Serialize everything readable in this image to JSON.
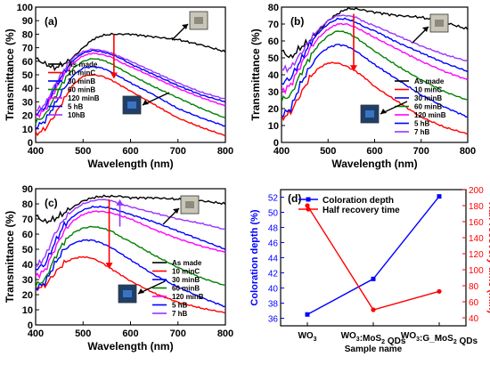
{
  "colors": {
    "black": "#000000",
    "red": "#ff0000",
    "blue": "#0000ff",
    "green": "#008000",
    "magenta": "#ff00ff",
    "purple": "#9933ff",
    "darkred": "#cc0000"
  },
  "chart_data": [
    {
      "id": "a",
      "type": "line",
      "panel_label": "(a)",
      "xlabel": "Wavelength (nm)",
      "ylabel": "Transmittance (%)",
      "xlim": [
        400,
        800
      ],
      "ylim": [
        0,
        100
      ],
      "xticks": [
        400,
        500,
        600,
        700,
        800
      ],
      "yticks": [
        0,
        10,
        20,
        30,
        40,
        50,
        60,
        70,
        80,
        90,
        100
      ],
      "legend": "bottom-left",
      "series": [
        {
          "name": "As made",
          "color": "#000000",
          "x": [
            400,
            420,
            440,
            470,
            500,
            520,
            540,
            560,
            580,
            600,
            650,
            700,
            750,
            800
          ],
          "y": [
            62,
            58,
            55,
            60,
            70,
            76,
            79,
            80,
            80,
            80,
            78,
            76,
            72,
            67
          ]
        },
        {
          "name": "10 minC",
          "color": "#ff0000",
          "x": [
            400,
            420,
            440,
            460,
            480,
            500,
            520,
            540,
            560,
            580,
            600,
            650,
            700,
            750,
            800
          ],
          "y": [
            6,
            10,
            20,
            32,
            43,
            49,
            50,
            49,
            46,
            42,
            38,
            28,
            18,
            11,
            5
          ]
        },
        {
          "name": "30 minB",
          "color": "#0000ff",
          "x": [
            400,
            420,
            440,
            460,
            480,
            500,
            520,
            540,
            560,
            580,
            600,
            650,
            700,
            750,
            800
          ],
          "y": [
            11,
            16,
            28,
            40,
            50,
            55,
            56,
            55,
            52,
            48,
            44,
            35,
            25,
            18,
            12
          ]
        },
        {
          "name": "60 minB",
          "color": "#008000",
          "x": [
            400,
            420,
            440,
            460,
            480,
            500,
            520,
            540,
            560,
            580,
            600,
            650,
            700,
            750,
            800
          ],
          "y": [
            15,
            20,
            33,
            46,
            55,
            60,
            62,
            61,
            58,
            54,
            50,
            41,
            33,
            25,
            18
          ]
        },
        {
          "name": "120 minB",
          "color": "#ff00ff",
          "x": [
            400,
            420,
            440,
            460,
            480,
            500,
            520,
            540,
            560,
            580,
            600,
            650,
            700,
            750,
            800
          ],
          "y": [
            19,
            24,
            38,
            50,
            59,
            64,
            66,
            65,
            63,
            59,
            56,
            48,
            40,
            33,
            27
          ]
        },
        {
          "name": "5 hB",
          "color": "#0000ff",
          "x": [
            400,
            420,
            440,
            460,
            480,
            500,
            520,
            540,
            560,
            580,
            600,
            650,
            700,
            750,
            800
          ],
          "y": [
            21,
            26,
            40,
            52,
            61,
            66,
            68,
            67,
            65,
            62,
            58,
            50,
            42,
            35,
            30
          ]
        },
        {
          "name": "10hB",
          "color": "#9933ff",
          "x": [
            400,
            420,
            440,
            460,
            480,
            500,
            520,
            540,
            560,
            580,
            600,
            650,
            700,
            750,
            800
          ],
          "y": [
            23,
            28,
            42,
            54,
            63,
            67,
            69,
            68,
            66,
            63,
            60,
            52,
            44,
            37,
            32
          ]
        }
      ]
    },
    {
      "id": "b",
      "type": "line",
      "panel_label": "(b)",
      "xlabel": "Wavelength (nm)",
      "ylabel": "Transmittance (%)",
      "xlim": [
        400,
        800
      ],
      "ylim": [
        0,
        80
      ],
      "xticks": [
        400,
        500,
        600,
        700,
        800
      ],
      "yticks": [
        0,
        10,
        20,
        30,
        40,
        50,
        60,
        70,
        80
      ],
      "legend": "bottom-right",
      "series": [
        {
          "name": "As made",
          "color": "#000000",
          "x": [
            400,
            420,
            440,
            460,
            480,
            500,
            520,
            540,
            560,
            580,
            600,
            650,
            700,
            750,
            800
          ],
          "y": [
            54,
            50,
            56,
            60,
            66,
            72,
            76,
            79,
            79,
            78,
            77,
            75,
            74,
            71,
            67
          ]
        },
        {
          "name": "10 minC",
          "color": "#ff0000",
          "x": [
            400,
            420,
            440,
            460,
            480,
            500,
            520,
            540,
            560,
            580,
            600,
            650,
            700,
            750,
            800
          ],
          "y": [
            14,
            18,
            28,
            38,
            44,
            47,
            47,
            45,
            42,
            38,
            33,
            24,
            15,
            9,
            5
          ]
        },
        {
          "name": "30 minB",
          "color": "#0000ff",
          "x": [
            400,
            420,
            440,
            460,
            480,
            500,
            520,
            540,
            560,
            580,
            600,
            650,
            700,
            750,
            800
          ],
          "y": [
            16,
            20,
            34,
            44,
            52,
            56,
            58,
            57,
            54,
            50,
            46,
            37,
            28,
            21,
            15
          ]
        },
        {
          "name": "60 minB",
          "color": "#008000",
          "x": [
            400,
            420,
            440,
            460,
            480,
            500,
            520,
            540,
            560,
            580,
            600,
            650,
            700,
            750,
            800
          ],
          "y": [
            25,
            28,
            40,
            50,
            58,
            63,
            66,
            65,
            62,
            58,
            54,
            45,
            37,
            30,
            25
          ]
        },
        {
          "name": "120 minB",
          "color": "#ff00ff",
          "x": [
            400,
            420,
            440,
            460,
            480,
            500,
            520,
            540,
            560,
            580,
            600,
            650,
            700,
            750,
            800
          ],
          "y": [
            30,
            34,
            45,
            55,
            62,
            67,
            70,
            70,
            68,
            65,
            62,
            55,
            48,
            42,
            37
          ]
        },
        {
          "name": "5 hB",
          "color": "#0000ff",
          "x": [
            400,
            420,
            440,
            460,
            480,
            500,
            520,
            540,
            560,
            580,
            600,
            650,
            700,
            750,
            800
          ],
          "y": [
            35,
            38,
            48,
            58,
            65,
            70,
            73,
            73,
            71,
            68,
            66,
            59,
            53,
            47,
            42
          ]
        },
        {
          "name": "7 hB",
          "color": "#9933ff",
          "x": [
            400,
            420,
            440,
            460,
            480,
            500,
            520,
            540,
            560,
            580,
            600,
            650,
            700,
            750,
            800
          ],
          "y": [
            43,
            44,
            52,
            60,
            67,
            72,
            75,
            75,
            74,
            71,
            69,
            63,
            57,
            52,
            48
          ]
        }
      ]
    },
    {
      "id": "c",
      "type": "line",
      "panel_label": "(c)",
      "xlabel": "Wavelength (nm)",
      "ylabel": "Transmittance (%)",
      "xlim": [
        400,
        800
      ],
      "ylim": [
        0,
        90
      ],
      "xticks": [
        400,
        500,
        600,
        700,
        800
      ],
      "yticks": [
        0,
        10,
        20,
        30,
        40,
        50,
        60,
        70,
        80,
        90
      ],
      "legend": "bottom-right",
      "series": [
        {
          "name": "As made",
          "color": "#000000",
          "x": [
            400,
            420,
            440,
            460,
            480,
            500,
            520,
            540,
            560,
            580,
            600,
            650,
            700,
            750,
            800
          ],
          "y": [
            72,
            68,
            70,
            74,
            78,
            82,
            84,
            85,
            85,
            85,
            84,
            84,
            83,
            82,
            80
          ]
        },
        {
          "name": "10 minC",
          "color": "#ff0000",
          "x": [
            400,
            420,
            440,
            460,
            480,
            500,
            520,
            540,
            560,
            580,
            600,
            650,
            700,
            750,
            800
          ],
          "y": [
            24,
            26,
            34,
            41,
            44,
            45,
            44,
            41,
            37,
            33,
            29,
            21,
            15,
            11,
            8
          ]
        },
        {
          "name": "30 minB",
          "color": "#0000ff",
          "x": [
            400,
            420,
            440,
            460,
            480,
            500,
            520,
            540,
            560,
            580,
            600,
            650,
            700,
            750,
            800
          ],
          "y": [
            24,
            28,
            40,
            50,
            54,
            56,
            56,
            54,
            51,
            47,
            43,
            33,
            25,
            18,
            12
          ]
        },
        {
          "name": "60 minB",
          "color": "#008000",
          "x": [
            400,
            420,
            440,
            460,
            480,
            500,
            520,
            540,
            560,
            580,
            600,
            650,
            700,
            750,
            800
          ],
          "y": [
            26,
            30,
            44,
            55,
            61,
            64,
            65,
            64,
            62,
            58,
            55,
            46,
            38,
            31,
            26
          ]
        },
        {
          "name": "120 minB",
          "color": "#ff00ff",
          "x": [
            400,
            420,
            440,
            460,
            480,
            500,
            520,
            540,
            560,
            580,
            600,
            650,
            700,
            750,
            800
          ],
          "y": [
            32,
            36,
            50,
            62,
            69,
            73,
            75,
            75,
            74,
            72,
            70,
            63,
            57,
            52,
            48
          ]
        },
        {
          "name": "5 hB",
          "color": "#0000ff",
          "x": [
            400,
            420,
            440,
            460,
            480,
            500,
            520,
            540,
            560,
            580,
            600,
            650,
            700,
            750,
            800
          ],
          "y": [
            37,
            40,
            54,
            66,
            72,
            76,
            78,
            78,
            77,
            75,
            73,
            68,
            62,
            56,
            50
          ]
        },
        {
          "name": "7 hB",
          "color": "#9933ff",
          "x": [
            400,
            420,
            440,
            460,
            480,
            500,
            520,
            540,
            560,
            580,
            600,
            650,
            700,
            750,
            800
          ],
          "y": [
            38,
            45,
            60,
            70,
            76,
            80,
            82,
            83,
            82,
            80,
            78,
            74,
            70,
            67,
            63
          ]
        }
      ]
    },
    {
      "id": "d",
      "type": "line",
      "panel_label": "(d)",
      "xlabel": "Sample name",
      "ylabel": "Coloration depth (%)",
      "y2label": "Half recovery time (min)",
      "categories": [
        "WO3",
        "WO3:MoS2 QDs",
        "WO3:G_MoS2 QDs"
      ],
      "ylim": [
        35,
        53
      ],
      "yticks": [
        36,
        38,
        40,
        42,
        44,
        46,
        48,
        50,
        52
      ],
      "y2lim": [
        30,
        200
      ],
      "y2ticks": [
        40,
        60,
        80,
        100,
        120,
        140,
        160,
        180,
        200
      ],
      "legend": "top-left",
      "series": [
        {
          "name": "Coloration depth",
          "color": "#0000ff",
          "axis": "left",
          "marker": "square",
          "values": [
            36.5,
            41.2,
            52.1
          ]
        },
        {
          "name": "Half recovery time",
          "color": "#ff0000",
          "axis": "right",
          "marker": "circle",
          "values": [
            180,
            50,
            73
          ]
        }
      ]
    }
  ]
}
